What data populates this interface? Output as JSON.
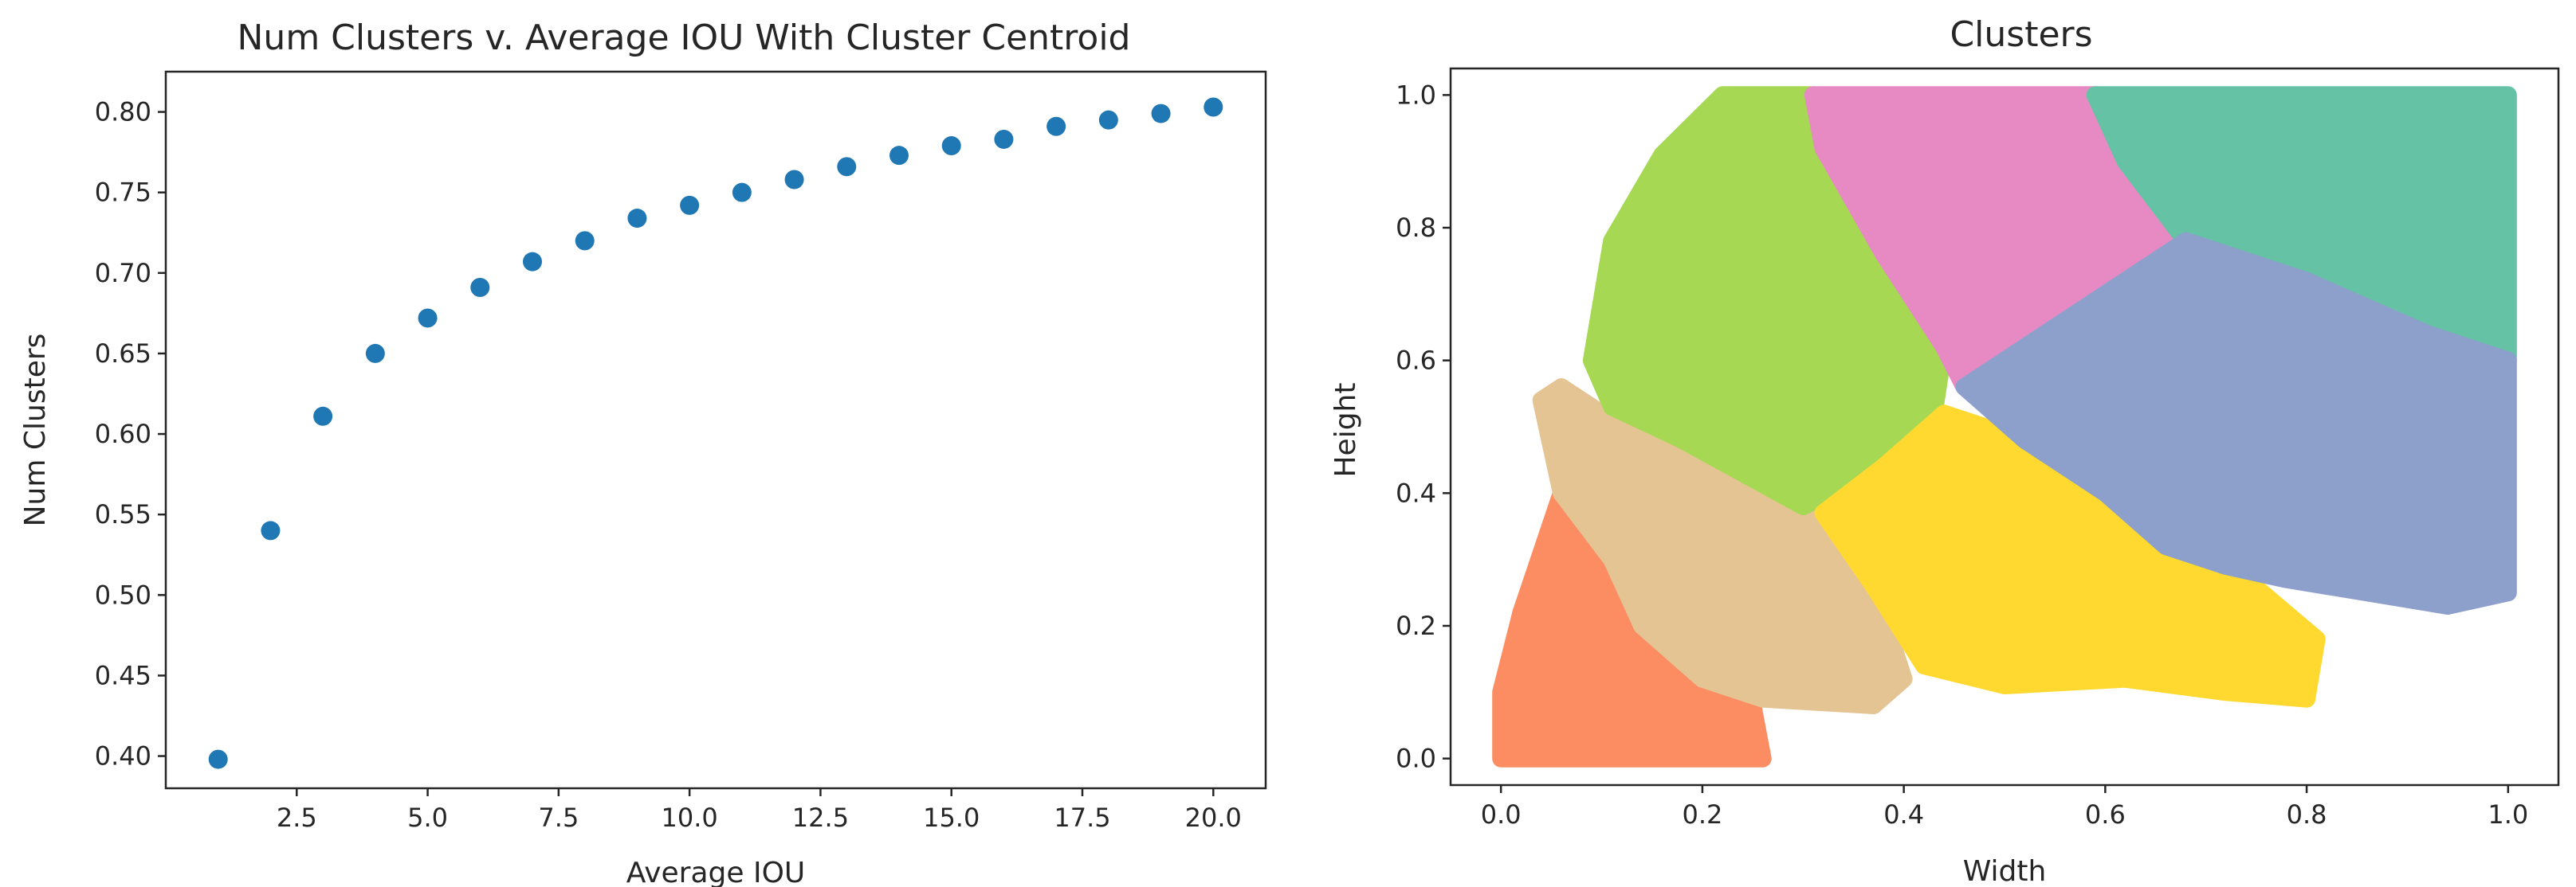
{
  "chart_data": [
    {
      "type": "scatter",
      "title": "Num Clusters v. Average IOU With Cluster Centroid",
      "xlabel": "Average IOU",
      "ylabel": "Num Clusters",
      "xlim": [
        0,
        21
      ],
      "ylim": [
        0.38,
        0.825
      ],
      "xticks": [
        "2.5",
        "5.0",
        "7.5",
        "10.0",
        "12.5",
        "15.0",
        "17.5",
        "20.0"
      ],
      "yticks": [
        "0.40",
        "0.45",
        "0.50",
        "0.55",
        "0.60",
        "0.65",
        "0.70",
        "0.75",
        "0.80"
      ],
      "grid": false,
      "color": "#1f77b4",
      "series": [
        {
          "x": [
            1,
            2,
            3,
            4,
            5,
            6,
            7,
            8,
            9,
            10,
            11,
            12,
            13,
            14,
            15,
            16,
            17,
            18,
            19,
            20
          ],
          "y": [
            0.398,
            0.54,
            0.611,
            0.65,
            0.672,
            0.691,
            0.707,
            0.72,
            0.734,
            0.742,
            0.75,
            0.758,
            0.766,
            0.773,
            0.779,
            0.783,
            0.791,
            0.795,
            0.799,
            0.803
          ]
        }
      ]
    },
    {
      "type": "scatter",
      "title": "Clusters",
      "xlabel": "Width",
      "ylabel": "Height",
      "xlim": [
        -0.05,
        1.05
      ],
      "ylim": [
        -0.04,
        1.04
      ],
      "xticks": [
        "0.0",
        "0.2",
        "0.4",
        "0.6",
        "0.8",
        "1.0"
      ],
      "yticks": [
        "0.0",
        "0.2",
        "0.4",
        "0.6",
        "0.8",
        "1.0"
      ],
      "grid": false,
      "clusters": [
        {
          "color": "#fc8d62",
          "polygon": [
            [
              0,
              0
            ],
            [
              0.26,
              0
            ],
            [
              0.25,
              0.08
            ],
            [
              0.15,
              0.19
            ],
            [
              0.12,
              0.38
            ],
            [
              0.06,
              0.4
            ],
            [
              0.02,
              0.22
            ],
            [
              0,
              0.1
            ]
          ]
        },
        {
          "color": "#e5c494",
          "polygon": [
            [
              0.06,
              0.56
            ],
            [
              0.1,
              0.52
            ],
            [
              0.18,
              0.48
            ],
            [
              0.26,
              0.43
            ],
            [
              0.34,
              0.37
            ],
            [
              0.37,
              0.26
            ],
            [
              0.4,
              0.12
            ],
            [
              0.37,
              0.08
            ],
            [
              0.26,
              0.09
            ],
            [
              0.2,
              0.12
            ],
            [
              0.14,
              0.2
            ],
            [
              0.11,
              0.3
            ],
            [
              0.06,
              0.4
            ],
            [
              0.04,
              0.54
            ]
          ]
        },
        {
          "color": "#a6d854",
          "polygon": [
            [
              0.11,
              0.78
            ],
            [
              0.16,
              0.91
            ],
            [
              0.22,
              1.0
            ],
            [
              0.31,
              1.0
            ],
            [
              0.32,
              0.92
            ],
            [
              0.38,
              0.76
            ],
            [
              0.44,
              0.62
            ],
            [
              0.43,
              0.52
            ],
            [
              0.38,
              0.44
            ],
            [
              0.3,
              0.38
            ],
            [
              0.24,
              0.43
            ],
            [
              0.18,
              0.48
            ],
            [
              0.11,
              0.53
            ],
            [
              0.09,
              0.6
            ]
          ]
        },
        {
          "color": "#ffd92f",
          "polygon": [
            [
              0.38,
              0.44
            ],
            [
              0.44,
              0.52
            ],
            [
              0.52,
              0.48
            ],
            [
              0.6,
              0.4
            ],
            [
              0.66,
              0.32
            ],
            [
              0.74,
              0.27
            ],
            [
              0.81,
              0.18
            ],
            [
              0.8,
              0.09
            ],
            [
              0.72,
              0.1
            ],
            [
              0.62,
              0.12
            ],
            [
              0.5,
              0.11
            ],
            [
              0.42,
              0.14
            ],
            [
              0.37,
              0.26
            ],
            [
              0.32,
              0.37
            ]
          ]
        },
        {
          "color": "#e78ac3",
          "polygon": [
            [
              0.31,
              1.0
            ],
            [
              0.59,
              1.0
            ],
            [
              0.62,
              0.9
            ],
            [
              0.68,
              0.78
            ],
            [
              0.6,
              0.7
            ],
            [
              0.52,
              0.62
            ],
            [
              0.46,
              0.56
            ],
            [
              0.44,
              0.62
            ],
            [
              0.38,
              0.76
            ],
            [
              0.32,
              0.92
            ]
          ]
        },
        {
          "color": "#66c2a5",
          "polygon": [
            [
              0.59,
              1.0
            ],
            [
              1.0,
              1.0
            ],
            [
              1.0,
              0.6
            ],
            [
              0.92,
              0.64
            ],
            [
              0.8,
              0.72
            ],
            [
              0.68,
              0.78
            ],
            [
              0.62,
              0.9
            ]
          ]
        },
        {
          "color": "#8da0cb",
          "polygon": [
            [
              0.46,
              0.56
            ],
            [
              0.52,
              0.62
            ],
            [
              0.6,
              0.7
            ],
            [
              0.68,
              0.78
            ],
            [
              0.8,
              0.72
            ],
            [
              0.92,
              0.64
            ],
            [
              1.0,
              0.6
            ],
            [
              1.0,
              0.25
            ],
            [
              0.94,
              0.23
            ],
            [
              0.86,
              0.25
            ],
            [
              0.78,
              0.27
            ],
            [
              0.72,
              0.29
            ],
            [
              0.66,
              0.32
            ],
            [
              0.6,
              0.4
            ],
            [
              0.52,
              0.48
            ]
          ]
        }
      ]
    }
  ]
}
